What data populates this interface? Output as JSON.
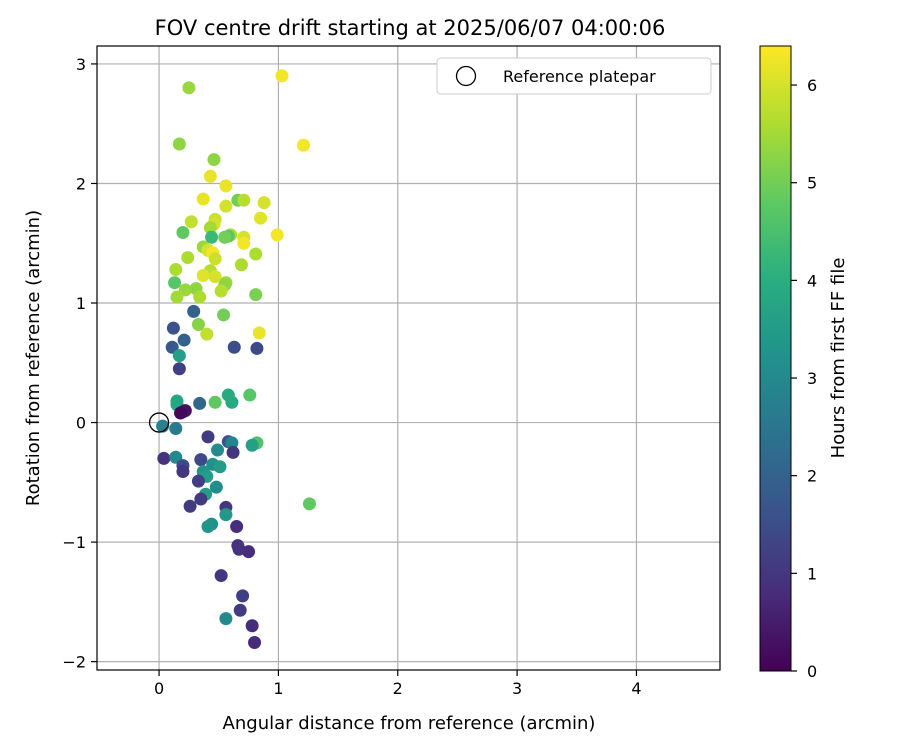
{
  "chart_data": {
    "type": "scatter",
    "title": "FOV centre drift starting at 2025/06/07 04:00:06",
    "xlabel": "Angular distance from reference (arcmin)",
    "ylabel": "Rotation from reference (arcmin)",
    "xlim": [
      -0.52,
      4.7
    ],
    "ylim": [
      -2.07,
      3.15
    ],
    "xticks": [
      0,
      1,
      2,
      3,
      4
    ],
    "yticks": [
      -2,
      -1,
      0,
      1,
      2,
      3
    ],
    "grid": true,
    "legend": {
      "label": "Reference platepar",
      "location": "upper right"
    },
    "colorbar": {
      "label": "Hours from first FF file",
      "range": [
        0,
        6.4
      ],
      "ticks": [
        0,
        1,
        2,
        3,
        4,
        5,
        6
      ],
      "colormap": "viridis"
    },
    "reference_point": {
      "x": 0,
      "y": 0
    },
    "points": [
      {
        "x": 0.25,
        "y": 2.8,
        "h": 5.4
      },
      {
        "x": 1.03,
        "y": 2.9,
        "h": 6.3
      },
      {
        "x": 1.21,
        "y": 2.32,
        "h": 6.3
      },
      {
        "x": 0.17,
        "y": 2.33,
        "h": 5.3
      },
      {
        "x": 0.46,
        "y": 2.2,
        "h": 5.3
      },
      {
        "x": 0.43,
        "y": 2.06,
        "h": 6.2
      },
      {
        "x": 0.56,
        "y": 1.98,
        "h": 6.2
      },
      {
        "x": 0.37,
        "y": 1.87,
        "h": 6.2
      },
      {
        "x": 0.66,
        "y": 1.86,
        "h": 5.0
      },
      {
        "x": 0.71,
        "y": 1.86,
        "h": 5.7
      },
      {
        "x": 0.88,
        "y": 1.84,
        "h": 6.0
      },
      {
        "x": 0.56,
        "y": 1.81,
        "h": 6.0
      },
      {
        "x": 0.85,
        "y": 1.71,
        "h": 6.1
      },
      {
        "x": 0.47,
        "y": 1.7,
        "h": 5.9
      },
      {
        "x": 0.27,
        "y": 1.68,
        "h": 5.8
      },
      {
        "x": 0.46,
        "y": 1.66,
        "h": 6.0
      },
      {
        "x": 0.43,
        "y": 1.63,
        "h": 5.5
      },
      {
        "x": 0.2,
        "y": 1.59,
        "h": 4.8
      },
      {
        "x": 0.6,
        "y": 1.57,
        "h": 5.6
      },
      {
        "x": 0.58,
        "y": 1.56,
        "h": 4.7
      },
      {
        "x": 0.44,
        "y": 1.55,
        "h": 4.3
      },
      {
        "x": 0.55,
        "y": 1.55,
        "h": 5.0
      },
      {
        "x": 0.71,
        "y": 1.55,
        "h": 6.0
      },
      {
        "x": 0.99,
        "y": 1.57,
        "h": 6.3
      },
      {
        "x": 0.71,
        "y": 1.5,
        "h": 6.3
      },
      {
        "x": 0.37,
        "y": 1.47,
        "h": 5.4
      },
      {
        "x": 0.41,
        "y": 1.44,
        "h": 6.0
      },
      {
        "x": 0.45,
        "y": 1.42,
        "h": 6.3
      },
      {
        "x": 0.81,
        "y": 1.41,
        "h": 5.6
      },
      {
        "x": 0.24,
        "y": 1.38,
        "h": 5.6
      },
      {
        "x": 0.47,
        "y": 1.37,
        "h": 5.9
      },
      {
        "x": 0.69,
        "y": 1.32,
        "h": 5.6
      },
      {
        "x": 0.14,
        "y": 1.28,
        "h": 5.6
      },
      {
        "x": 0.43,
        "y": 1.27,
        "h": 5.7
      },
      {
        "x": 0.37,
        "y": 1.23,
        "h": 6.1
      },
      {
        "x": 0.47,
        "y": 1.22,
        "h": 6.0
      },
      {
        "x": 0.56,
        "y": 1.17,
        "h": 5.4
      },
      {
        "x": 0.13,
        "y": 1.17,
        "h": 4.7
      },
      {
        "x": 0.55,
        "y": 1.15,
        "h": 5.3
      },
      {
        "x": 0.22,
        "y": 1.11,
        "h": 5.4
      },
      {
        "x": 0.31,
        "y": 1.12,
        "h": 5.3
      },
      {
        "x": 0.52,
        "y": 1.1,
        "h": 5.7
      },
      {
        "x": 0.15,
        "y": 1.05,
        "h": 5.5
      },
      {
        "x": 0.34,
        "y": 1.05,
        "h": 5.6
      },
      {
        "x": 0.81,
        "y": 1.07,
        "h": 5.1
      },
      {
        "x": 0.29,
        "y": 0.93,
        "h": 2.0
      },
      {
        "x": 0.54,
        "y": 0.9,
        "h": 5.0
      },
      {
        "x": 0.84,
        "y": 0.75,
        "h": 6.2
      },
      {
        "x": 0.33,
        "y": 0.82,
        "h": 5.2
      },
      {
        "x": 0.12,
        "y": 0.79,
        "h": 1.6
      },
      {
        "x": 0.4,
        "y": 0.74,
        "h": 5.8
      },
      {
        "x": 0.21,
        "y": 0.69,
        "h": 2.0
      },
      {
        "x": 0.11,
        "y": 0.63,
        "h": 1.8
      },
      {
        "x": 0.63,
        "y": 0.63,
        "h": 1.5
      },
      {
        "x": 0.82,
        "y": 0.62,
        "h": 1.4
      },
      {
        "x": 0.17,
        "y": 0.56,
        "h": 3.6
      },
      {
        "x": 0.17,
        "y": 0.45,
        "h": 1.2
      },
      {
        "x": 0.58,
        "y": 0.23,
        "h": 3.9
      },
      {
        "x": 0.76,
        "y": 0.23,
        "h": 4.7
      },
      {
        "x": 0.15,
        "y": 0.18,
        "h": 3.8
      },
      {
        "x": 0.47,
        "y": 0.17,
        "h": 4.8
      },
      {
        "x": 0.61,
        "y": 0.17,
        "h": 3.9
      },
      {
        "x": 0.34,
        "y": 0.16,
        "h": 2.1
      },
      {
        "x": 0.15,
        "y": 0.15,
        "h": 3.8
      },
      {
        "x": 0.2,
        "y": 0.09,
        "h": 0.7
      },
      {
        "x": 0.22,
        "y": 0.1,
        "h": 0.3
      },
      {
        "x": 0.18,
        "y": 0.08,
        "h": 0.1
      },
      {
        "x": 0.03,
        "y": -0.03,
        "h": 2.8
      },
      {
        "x": 0.14,
        "y": -0.05,
        "h": 2.6
      },
      {
        "x": 0.41,
        "y": -0.12,
        "h": 1.1
      },
      {
        "x": 0.58,
        "y": -0.16,
        "h": 1.6
      },
      {
        "x": 0.61,
        "y": -0.17,
        "h": 2.9
      },
      {
        "x": 0.82,
        "y": -0.17,
        "h": 4.6
      },
      {
        "x": 0.78,
        "y": -0.19,
        "h": 3.6
      },
      {
        "x": 0.49,
        "y": -0.23,
        "h": 3.1
      },
      {
        "x": 0.62,
        "y": -0.25,
        "h": 1.0
      },
      {
        "x": 0.04,
        "y": -0.3,
        "h": 0.9
      },
      {
        "x": 0.14,
        "y": -0.29,
        "h": 3.0
      },
      {
        "x": 0.35,
        "y": -0.31,
        "h": 1.4
      },
      {
        "x": 0.2,
        "y": -0.36,
        "h": 1.4
      },
      {
        "x": 0.45,
        "y": -0.35,
        "h": 3.2
      },
      {
        "x": 0.51,
        "y": -0.37,
        "h": 3.5
      },
      {
        "x": 0.37,
        "y": -0.41,
        "h": 3.3
      },
      {
        "x": 0.2,
        "y": -0.41,
        "h": 1.0
      },
      {
        "x": 0.4,
        "y": -0.45,
        "h": 3.5
      },
      {
        "x": 0.33,
        "y": -0.49,
        "h": 1.2
      },
      {
        "x": 0.48,
        "y": -0.54,
        "h": 3.1
      },
      {
        "x": 0.39,
        "y": -0.6,
        "h": 3.5
      },
      {
        "x": 0.35,
        "y": -0.64,
        "h": 1.1
      },
      {
        "x": 0.26,
        "y": -0.7,
        "h": 1.1
      },
      {
        "x": 0.56,
        "y": -0.71,
        "h": 1.0
      },
      {
        "x": 0.56,
        "y": -0.77,
        "h": 3.4
      },
      {
        "x": 0.44,
        "y": -0.85,
        "h": 3.2
      },
      {
        "x": 0.41,
        "y": -0.87,
        "h": 3.3
      },
      {
        "x": 0.65,
        "y": -0.87,
        "h": 0.8
      },
      {
        "x": 1.26,
        "y": -0.68,
        "h": 4.8
      },
      {
        "x": 0.66,
        "y": -1.03,
        "h": 0.9
      },
      {
        "x": 0.67,
        "y": -1.06,
        "h": 0.9
      },
      {
        "x": 0.75,
        "y": -1.08,
        "h": 0.8
      },
      {
        "x": 0.52,
        "y": -1.28,
        "h": 1.0
      },
      {
        "x": 0.7,
        "y": -1.45,
        "h": 1.2
      },
      {
        "x": 0.68,
        "y": -1.57,
        "h": 1.1
      },
      {
        "x": 0.56,
        "y": -1.64,
        "h": 3.0
      },
      {
        "x": 0.78,
        "y": -1.7,
        "h": 0.8
      },
      {
        "x": 0.8,
        "y": -1.84,
        "h": 0.8
      }
    ]
  }
}
